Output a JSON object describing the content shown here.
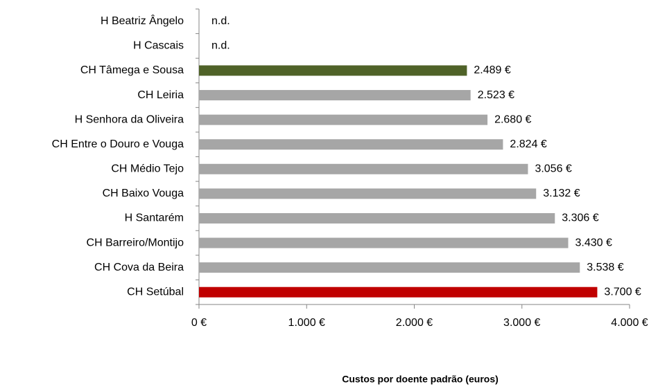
{
  "chart_data": {
    "type": "bar",
    "orientation": "horizontal",
    "categories": [
      "H Beatriz Ângelo",
      "H Cascais",
      "CH Tâmega e Sousa",
      "CH Leiria",
      "H Senhora da Oliveira",
      "CH Entre o Douro e Vouga",
      "CH Médio Tejo",
      "CH Baixo Vouga",
      "H Santarém",
      "CH Barreiro/Montijo",
      "CH Cova da Beira",
      "CH Setúbal"
    ],
    "values": [
      null,
      null,
      2489,
      2523,
      2680,
      2824,
      3056,
      3132,
      3306,
      3430,
      3538,
      3700
    ],
    "value_labels": [
      "n.d.",
      "n.d.",
      "2.489 €",
      "2.523 €",
      "2.680 €",
      "2.824 €",
      "3.056 €",
      "3.132 €",
      "3.306 €",
      "3.430 €",
      "3.538 €",
      "3.700 €"
    ],
    "colors": [
      "#a6a6a6",
      "#a6a6a6",
      "#4f6228",
      "#a6a6a6",
      "#a6a6a6",
      "#a6a6a6",
      "#a6a6a6",
      "#a6a6a6",
      "#a6a6a6",
      "#a6a6a6",
      "#a6a6a6",
      "#c00000"
    ],
    "xlabel": "Custos por doente padrão (euros)",
    "xlim": [
      0,
      4000
    ],
    "xticks": [
      {
        "value": 0,
        "label": "0 €"
      },
      {
        "value": 1000,
        "label": "1.000 €"
      },
      {
        "value": 2000,
        "label": "2.000 €"
      },
      {
        "value": 3000,
        "label": "3.000 €"
      },
      {
        "value": 4000,
        "label": "4.000 €"
      }
    ],
    "grid": false
  }
}
